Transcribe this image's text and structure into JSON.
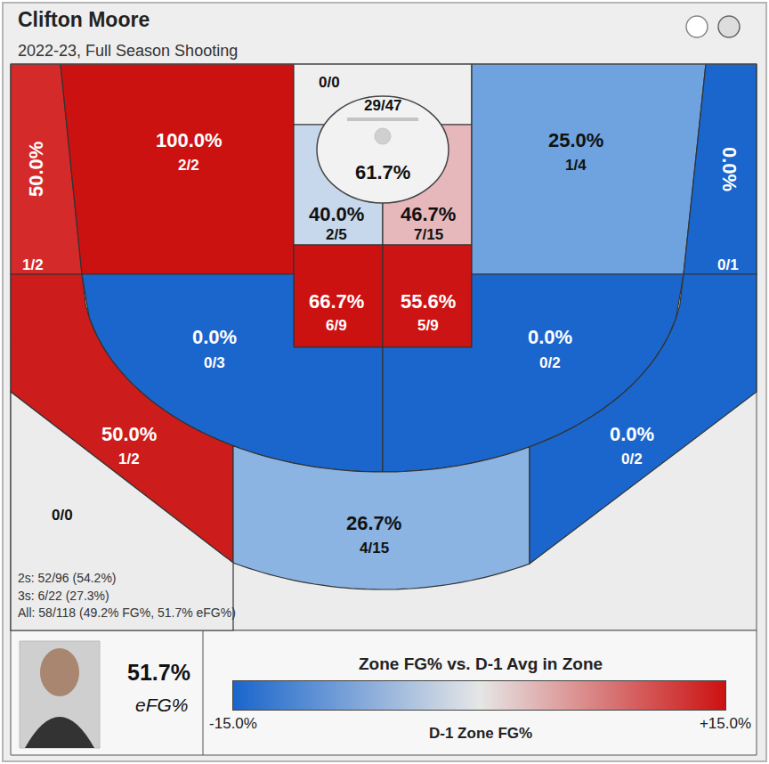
{
  "chart_data": {
    "type": "shot_chart",
    "title": "Clifton Moore",
    "subtitle": "2022-23, Full Season Shooting",
    "zones": [
      {
        "pct": "50.0%",
        "shots": "1/2",
        "color": "#d42a2a"
      },
      {
        "pct": "100.0%",
        "shots": "2/2",
        "color": "#cc1111"
      },
      {
        "shots": "0/0",
        "color": "#efefef"
      },
      {
        "pct": "61.7%",
        "shots": "29/47",
        "color": "#f2f2f2"
      },
      {
        "pct": "40.0%",
        "shots": "2/5",
        "color": "#c8d8ec"
      },
      {
        "pct": "46.7%",
        "shots": "7/15",
        "color": "#e7b8bb"
      },
      {
        "pct": "66.7%",
        "shots": "6/9",
        "color": "#cc1111"
      },
      {
        "pct": "55.6%",
        "shots": "5/9",
        "color": "#cc1414"
      },
      {
        "pct": "25.0%",
        "shots": "1/4",
        "color": "#6ea3e0"
      },
      {
        "pct": "0.0%",
        "shots": "0/1",
        "color": "#1a66cc"
      },
      {
        "pct": "0.0%",
        "shots": "0/3",
        "color": "#1a66cc"
      },
      {
        "pct": "0.0%",
        "shots": "0/2",
        "color": "#1a66cc"
      },
      {
        "pct": "50.0%",
        "shots": "1/2",
        "color": "#cc1c1c"
      },
      {
        "pct": "26.7%",
        "shots": "4/15",
        "color": "#8bb4e2"
      },
      {
        "pct": "0.0%",
        "shots": "0/2",
        "color": "#1a66cc"
      },
      {
        "shots": "0/0",
        "color": "#ececec"
      }
    ],
    "summary": [
      "2s: 52/96 (54.2%)",
      "3s: 6/22 (27.3%)",
      "All: 58/118 (49.2% FG%, 51.7% eFG%)"
    ],
    "efg": "51.7%",
    "efg_label": "eFG%",
    "colorbar": {
      "title": "Zone FG% vs. D-1 Avg in Zone",
      "range": [
        -15,
        15
      ],
      "ticks": [
        {
          "value": -15,
          "label": "-15.0%"
        },
        {
          "value": 15,
          "label": "+15.0%"
        }
      ],
      "caption": "D-1 Zone FG%",
      "colors": [
        "#1a66cc",
        "#e6e6e6",
        "#cc1111"
      ]
    }
  }
}
